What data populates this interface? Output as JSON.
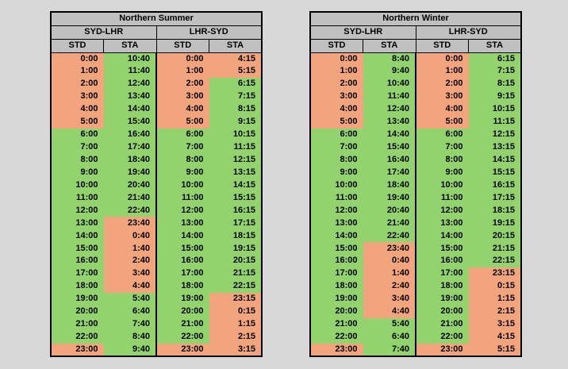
{
  "background": "#d8d8d8",
  "colors": {
    "g": "#93d36e",
    "s": "#f2a57d",
    "header_bg": "#c0c0c0",
    "border": "#000000",
    "text": "#000000"
  },
  "tables": [
    {
      "title": "Northern Summer",
      "directions": [
        "SYD-LHR",
        "LHR-SYD"
      ],
      "columns": [
        "STD",
        "STA",
        "STD",
        "STA"
      ],
      "rows": [
        [
          "0:00",
          "10:40",
          "0:00",
          "4:15"
        ],
        [
          "1:00",
          "11:40",
          "1:00",
          "5:15"
        ],
        [
          "2:00",
          "12:40",
          "2:00",
          "6:15"
        ],
        [
          "3:00",
          "13:40",
          "3:00",
          "7:15"
        ],
        [
          "4:00",
          "14:40",
          "4:00",
          "8:15"
        ],
        [
          "5:00",
          "15:40",
          "5:00",
          "9:15"
        ],
        [
          "6:00",
          "16:40",
          "6:00",
          "10:15"
        ],
        [
          "7:00",
          "17:40",
          "7:00",
          "11:15"
        ],
        [
          "8:00",
          "18:40",
          "8:00",
          "12:15"
        ],
        [
          "9:00",
          "19:40",
          "9:00",
          "13:15"
        ],
        [
          "10:00",
          "20:40",
          "10:00",
          "14:15"
        ],
        [
          "11:00",
          "21:40",
          "11:00",
          "15:15"
        ],
        [
          "12:00",
          "22:40",
          "12:00",
          "16:15"
        ],
        [
          "13:00",
          "23:40",
          "13:00",
          "17:15"
        ],
        [
          "14:00",
          "0:40",
          "14:00",
          "18:15"
        ],
        [
          "15:00",
          "1:40",
          "15:00",
          "19:15"
        ],
        [
          "16:00",
          "2:40",
          "16:00",
          "20:15"
        ],
        [
          "17:00",
          "3:40",
          "17:00",
          "21:15"
        ],
        [
          "18:00",
          "4:40",
          "18:00",
          "22:15"
        ],
        [
          "19:00",
          "5:40",
          "19:00",
          "23:15"
        ],
        [
          "20:00",
          "6:40",
          "20:00",
          "0:15"
        ],
        [
          "21:00",
          "7:40",
          "21:00",
          "1:15"
        ],
        [
          "22:00",
          "8:40",
          "22:00",
          "2:15"
        ],
        [
          "23:00",
          "9:40",
          "23:00",
          "3:15"
        ]
      ],
      "row_colors": [
        "sgss",
        "sgss",
        "sgsg",
        "sgsg",
        "sgsg",
        "sgsg",
        "gggg",
        "gggg",
        "gggg",
        "gggg",
        "gggg",
        "gggg",
        "gggg",
        "gsgg",
        "gsgg",
        "gsgg",
        "gsgg",
        "gsgg",
        "gsgg",
        "gggs",
        "gggs",
        "gggs",
        "gggs",
        "sgss"
      ]
    },
    {
      "title": "Northern Winter",
      "directions": [
        "SYD-LHR",
        "LHR-SYD"
      ],
      "columns": [
        "STD",
        "STA",
        "STD",
        "STA"
      ],
      "rows": [
        [
          "0:00",
          "8:40",
          "0:00",
          "6:15"
        ],
        [
          "1:00",
          "9:40",
          "1:00",
          "7:15"
        ],
        [
          "2:00",
          "10:40",
          "2:00",
          "8:15"
        ],
        [
          "3:00",
          "11:40",
          "3:00",
          "9:15"
        ],
        [
          "4:00",
          "12:40",
          "4:00",
          "10:15"
        ],
        [
          "5:00",
          "13:40",
          "5:00",
          "11:15"
        ],
        [
          "6:00",
          "14:40",
          "6:00",
          "12:15"
        ],
        [
          "7:00",
          "15:40",
          "7:00",
          "13:15"
        ],
        [
          "8:00",
          "16:40",
          "8:00",
          "14:15"
        ],
        [
          "9:00",
          "17:40",
          "9:00",
          "15:15"
        ],
        [
          "10:00",
          "18:40",
          "10:00",
          "16:15"
        ],
        [
          "11:00",
          "19:40",
          "11:00",
          "17:15"
        ],
        [
          "12:00",
          "20:40",
          "12:00",
          "18:15"
        ],
        [
          "13:00",
          "21:40",
          "13:00",
          "19:15"
        ],
        [
          "14:00",
          "22:40",
          "14:00",
          "20:15"
        ],
        [
          "15:00",
          "23:40",
          "15:00",
          "21:15"
        ],
        [
          "16:00",
          "0:40",
          "16:00",
          "22:15"
        ],
        [
          "17:00",
          "1:40",
          "17:00",
          "23:15"
        ],
        [
          "18:00",
          "2:40",
          "18:00",
          "0:15"
        ],
        [
          "19:00",
          "3:40",
          "19:00",
          "1:15"
        ],
        [
          "20:00",
          "4:40",
          "20:00",
          "2:15"
        ],
        [
          "21:00",
          "5:40",
          "21:00",
          "3:15"
        ],
        [
          "22:00",
          "6:40",
          "22:00",
          "4:15"
        ],
        [
          "23:00",
          "7:40",
          "23:00",
          "5:15"
        ]
      ],
      "row_colors": [
        "sgsg",
        "sgsg",
        "sgsg",
        "sgsg",
        "sgsg",
        "sgsg",
        "gggg",
        "gggg",
        "gggg",
        "gggg",
        "gggg",
        "gggg",
        "gggg",
        "gggg",
        "gggg",
        "gsgg",
        "gsgg",
        "gsgs",
        "gsgs",
        "gsgs",
        "gsgs",
        "gggs",
        "gggs",
        "sgss"
      ]
    }
  ]
}
